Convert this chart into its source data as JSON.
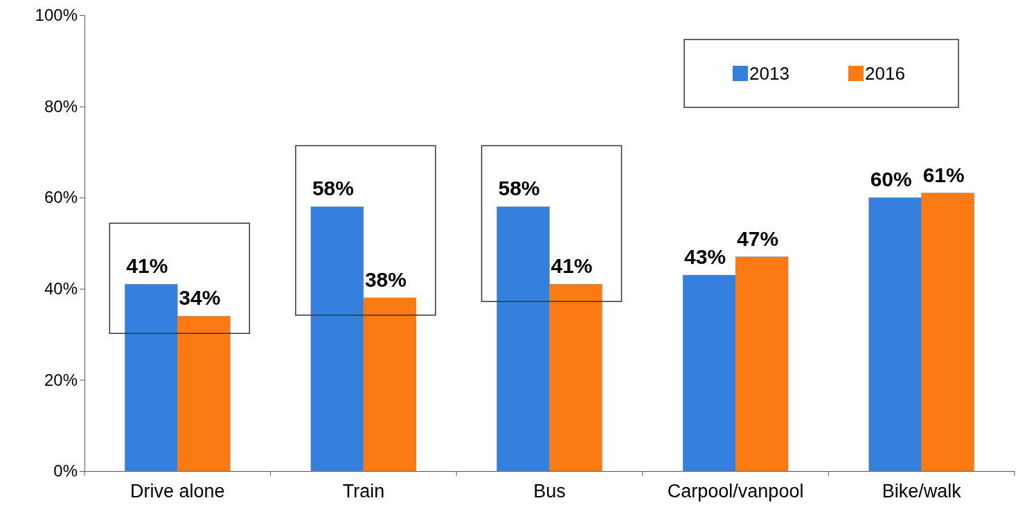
{
  "chart_data": {
    "type": "bar",
    "categories": [
      "Drive alone",
      "Train",
      "Bus",
      "Carpool/vanpool",
      "Bike/walk"
    ],
    "series": [
      {
        "name": "2013",
        "color": "#3580de",
        "values": [
          41,
          58,
          58,
          43,
          60
        ]
      },
      {
        "name": "2016",
        "color": "#fb7b12",
        "values": [
          34,
          38,
          41,
          47,
          61
        ]
      }
    ],
    "ylim": [
      0,
      100
    ],
    "yticks": [
      {
        "value": 0,
        "label": "0%"
      },
      {
        "value": 20,
        "label": "20%"
      },
      {
        "value": 40,
        "label": "40%"
      },
      {
        "value": 60,
        "label": "60%"
      },
      {
        "value": 80,
        "label": "80%"
      },
      {
        "value": 100,
        "label": "100%"
      }
    ],
    "value_labels": [
      [
        "41%",
        "58%",
        "58%",
        "43%",
        "60%"
      ],
      [
        "34%",
        "38%",
        "41%",
        "47%",
        "61%"
      ]
    ],
    "legend": "top right",
    "grid": false
  }
}
